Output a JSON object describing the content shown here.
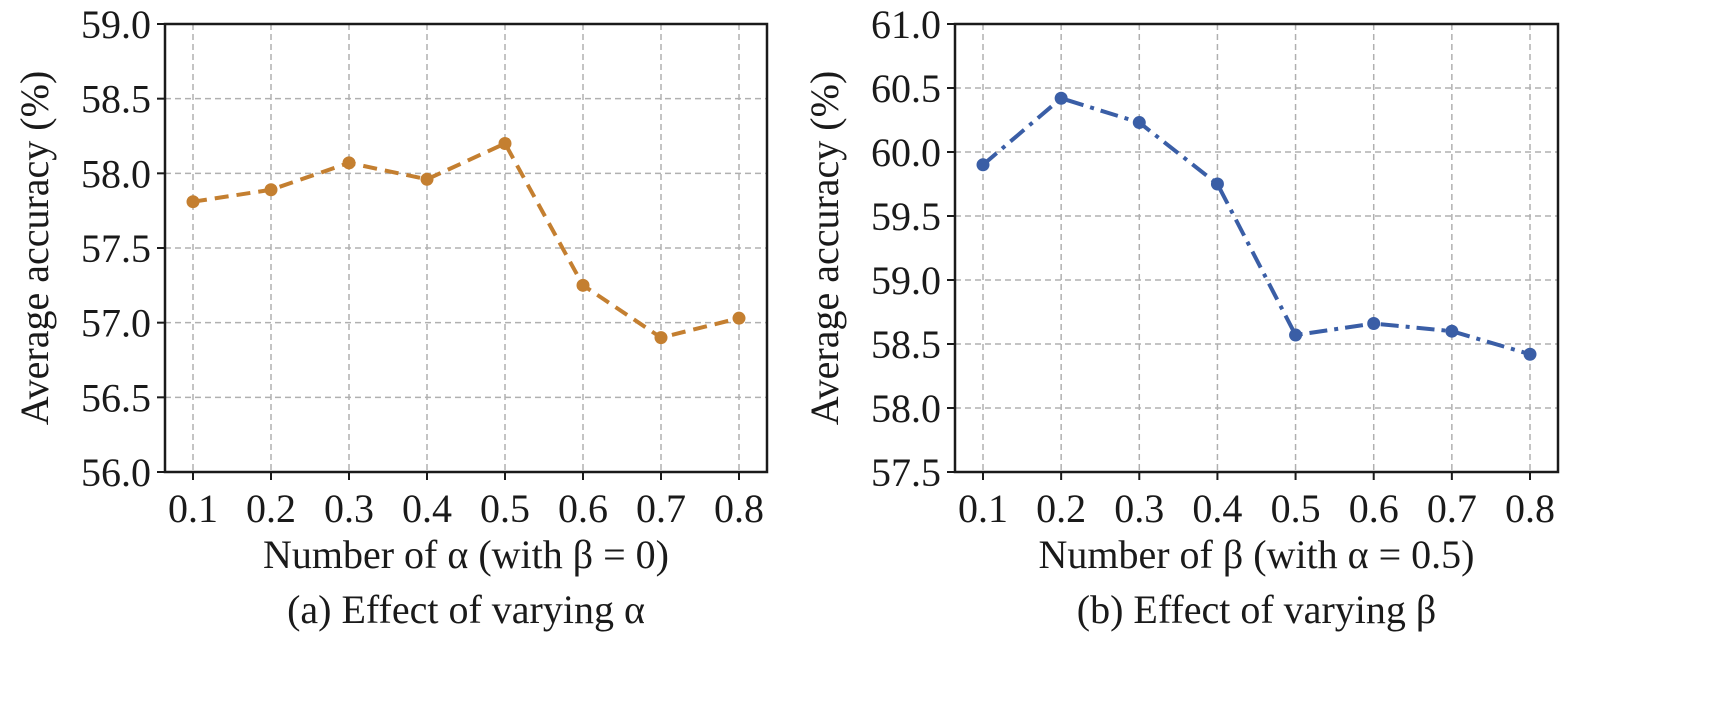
{
  "chart_data": [
    {
      "type": "line",
      "x": [
        0.1,
        0.2,
        0.3,
        0.4,
        0.5,
        0.6,
        0.7,
        0.8
      ],
      "x_tick_labels": [
        "0.1",
        "0.2",
        "0.3",
        "0.4",
        "0.5",
        "0.6",
        "0.7",
        "0.8"
      ],
      "y_ticks": [
        56.0,
        56.5,
        57.0,
        57.5,
        58.0,
        58.5,
        59.0
      ],
      "y_tick_labels": [
        "56.0",
        "56.5",
        "57.0",
        "57.5",
        "58.0",
        "58.5",
        "59.0"
      ],
      "ylim": [
        56.0,
        59.0
      ],
      "grid": true,
      "xlabel": "Number of α (with β = 0)",
      "ylabel": "Average accuracy (%)",
      "caption": "(a) Effect of varying α",
      "series": [
        {
          "values": [
            57.81,
            57.89,
            58.07,
            57.96,
            58.2,
            57.25,
            56.9,
            57.03
          ],
          "color": "#c47f30",
          "line_style": "dashed",
          "marker": "circle"
        }
      ]
    },
    {
      "type": "line",
      "x": [
        0.1,
        0.2,
        0.3,
        0.4,
        0.5,
        0.6,
        0.7,
        0.8
      ],
      "x_tick_labels": [
        "0.1",
        "0.2",
        "0.3",
        "0.4",
        "0.5",
        "0.6",
        "0.7",
        "0.8"
      ],
      "y_ticks": [
        57.5,
        58.0,
        58.5,
        59.0,
        59.5,
        60.0,
        60.5,
        61.0
      ],
      "y_tick_labels": [
        "57.5",
        "58.0",
        "58.5",
        "59.0",
        "59.5",
        "60.0",
        "60.5",
        "61.0"
      ],
      "ylim": [
        57.5,
        61.0
      ],
      "grid": true,
      "xlabel": "Number of β (with α = 0.5)",
      "ylabel": "Average accuracy (%)",
      "caption": "(b) Effect of varying β",
      "series": [
        {
          "values": [
            59.9,
            60.42,
            60.23,
            59.75,
            58.57,
            58.66,
            58.6,
            58.42
          ],
          "color": "#3a5ea6",
          "line_style": "dashdot",
          "marker": "circle"
        }
      ]
    }
  ]
}
